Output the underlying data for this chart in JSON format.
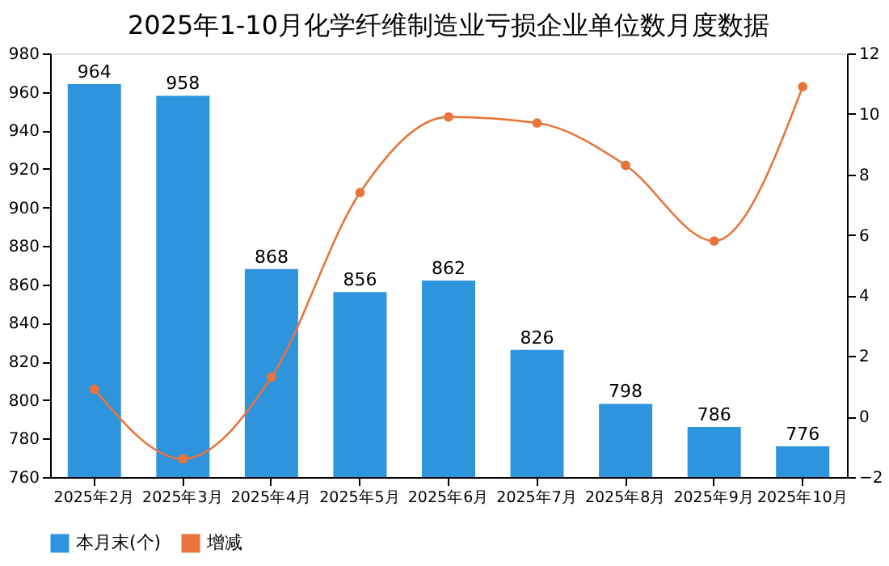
{
  "chart_data": {
    "type": "bar",
    "title": "2025年1-10月化学纤维制造业亏损企业单位数月度数据",
    "categories": [
      "2025年2月",
      "2025年3月",
      "2025年4月",
      "2025年5月",
      "2025年6月",
      "2025年7月",
      "2025年8月",
      "2025年9月",
      "2025年10月"
    ],
    "series": [
      {
        "name": "本月末(个)",
        "color": "#2e94dd",
        "values": [
          964,
          958,
          868,
          856,
          862,
          826,
          798,
          786,
          776
        ],
        "value_labels": [
          "964",
          "958",
          "868",
          "856",
          "862",
          "826",
          "798",
          "786",
          "776"
        ]
      },
      {
        "name": "增减",
        "type": "line",
        "axis": "y2",
        "color": "#e8743b",
        "values": [
          0.9,
          -1.4,
          1.3,
          7.4,
          9.9,
          9.7,
          8.3,
          5.8,
          10.9
        ]
      }
    ],
    "ylim": [
      760,
      980
    ],
    "yticks": [
      760,
      780,
      800,
      820,
      840,
      860,
      880,
      900,
      920,
      940,
      960,
      980
    ],
    "y2lim": [
      -2,
      12
    ],
    "y2ticks": [
      -2,
      0,
      2,
      4,
      6,
      8,
      10,
      12
    ],
    "grid": false,
    "legend": "bottom left",
    "marker": "circle",
    "line_style": "solid"
  }
}
